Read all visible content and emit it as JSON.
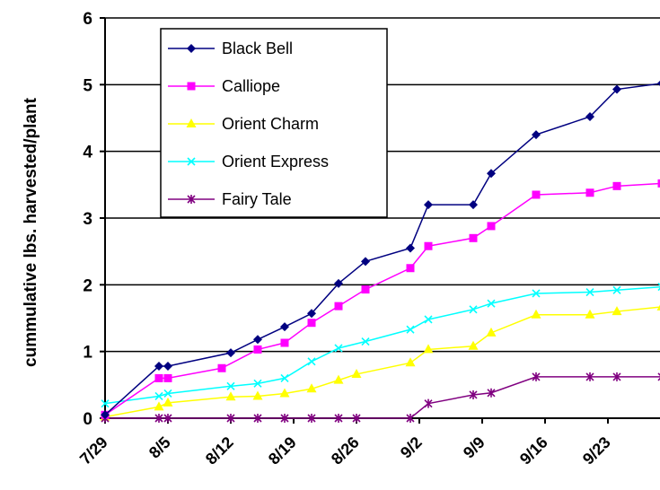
{
  "chart_data": {
    "type": "line",
    "title": "",
    "xlabel": "",
    "ylabel": "cummulative lbs. harvested/plant",
    "ylim": [
      0,
      6
    ],
    "yticks": [
      "0",
      "1",
      "2",
      "3",
      "4",
      "5",
      "6"
    ],
    "x_tick_labels": [
      "7/29",
      "8/5",
      "8/12",
      "8/19",
      "8/26",
      "9/2",
      "9/9",
      "9/16",
      "9/23"
    ],
    "grid": "horizontal",
    "legend_position": "top-left",
    "series": [
      {
        "name": "Black Bell",
        "color": "#000080",
        "marker": "diamond",
        "points": [
          [
            "7/29",
            0.05
          ],
          [
            "8/4",
            0.78
          ],
          [
            "8/5",
            0.78
          ],
          [
            "8/12",
            0.98
          ],
          [
            "8/15",
            1.18
          ],
          [
            "8/18",
            1.37
          ],
          [
            "8/21",
            1.57
          ],
          [
            "8/24",
            2.02
          ],
          [
            "8/27",
            2.35
          ],
          [
            "9/1",
            2.55
          ],
          [
            "9/3",
            3.2
          ],
          [
            "9/8",
            3.2
          ],
          [
            "9/10",
            3.67
          ],
          [
            "9/15",
            4.25
          ],
          [
            "9/21",
            4.52
          ],
          [
            "9/24",
            4.93
          ],
          [
            "9/29",
            5.02
          ]
        ]
      },
      {
        "name": "Calliope",
        "color": "#FF00FF",
        "marker": "square",
        "points": [
          [
            "7/29",
            0.05
          ],
          [
            "8/4",
            0.6
          ],
          [
            "8/5",
            0.6
          ],
          [
            "8/11",
            0.75
          ],
          [
            "8/15",
            1.03
          ],
          [
            "8/18",
            1.13
          ],
          [
            "8/21",
            1.43
          ],
          [
            "8/24",
            1.68
          ],
          [
            "8/27",
            1.93
          ],
          [
            "9/1",
            2.25
          ],
          [
            "9/3",
            2.58
          ],
          [
            "9/8",
            2.7
          ],
          [
            "9/10",
            2.88
          ],
          [
            "9/15",
            3.35
          ],
          [
            "9/21",
            3.38
          ],
          [
            "9/24",
            3.48
          ],
          [
            "9/29",
            3.52
          ]
        ]
      },
      {
        "name": "Orient Charm",
        "color": "#FFFF00",
        "marker": "triangle",
        "points": [
          [
            "7/29",
            0.02
          ],
          [
            "8/4",
            0.17
          ],
          [
            "8/5",
            0.23
          ],
          [
            "8/12",
            0.32
          ],
          [
            "8/15",
            0.33
          ],
          [
            "8/18",
            0.37
          ],
          [
            "8/21",
            0.44
          ],
          [
            "8/24",
            0.57
          ],
          [
            "8/26",
            0.66
          ],
          [
            "9/1",
            0.83
          ],
          [
            "9/3",
            1.03
          ],
          [
            "9/8",
            1.08
          ],
          [
            "9/10",
            1.28
          ],
          [
            "9/15",
            1.55
          ],
          [
            "9/21",
            1.55
          ],
          [
            "9/24",
            1.6
          ],
          [
            "9/29",
            1.67
          ]
        ]
      },
      {
        "name": "Orient Express",
        "color": "#00FFFF",
        "marker": "x",
        "points": [
          [
            "7/29",
            0.22
          ],
          [
            "8/4",
            0.33
          ],
          [
            "8/5",
            0.37
          ],
          [
            "8/12",
            0.48
          ],
          [
            "8/15",
            0.52
          ],
          [
            "8/18",
            0.6
          ],
          [
            "8/21",
            0.85
          ],
          [
            "8/24",
            1.05
          ],
          [
            "8/27",
            1.15
          ],
          [
            "9/1",
            1.33
          ],
          [
            "9/3",
            1.48
          ],
          [
            "9/8",
            1.63
          ],
          [
            "9/10",
            1.72
          ],
          [
            "9/15",
            1.87
          ],
          [
            "9/21",
            1.89
          ],
          [
            "9/24",
            1.92
          ],
          [
            "9/29",
            1.97
          ]
        ]
      },
      {
        "name": "Fairy Tale",
        "color": "#800080",
        "marker": "star",
        "points": [
          [
            "7/29",
            0.0
          ],
          [
            "8/4",
            0.0
          ],
          [
            "8/5",
            0.0
          ],
          [
            "8/12",
            0.0
          ],
          [
            "8/15",
            0.0
          ],
          [
            "8/18",
            0.0
          ],
          [
            "8/21",
            0.0
          ],
          [
            "8/24",
            0.0
          ],
          [
            "8/26",
            0.0
          ],
          [
            "9/1",
            0.0
          ],
          [
            "9/3",
            0.22
          ],
          [
            "9/8",
            0.35
          ],
          [
            "9/10",
            0.38
          ],
          [
            "9/15",
            0.62
          ],
          [
            "9/21",
            0.62
          ],
          [
            "9/24",
            0.62
          ],
          [
            "9/29",
            0.62
          ]
        ]
      }
    ]
  }
}
